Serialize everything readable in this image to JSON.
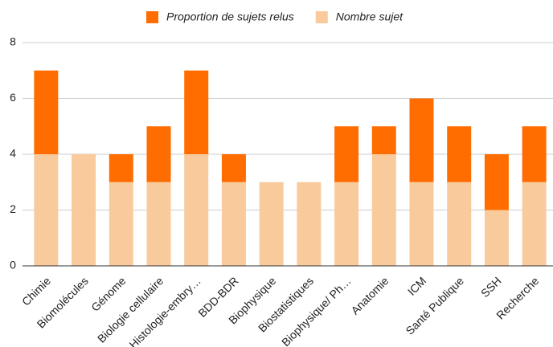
{
  "chart_data": {
    "type": "stacked_bar",
    "categories": [
      "Chimie",
      "Biomolécules",
      "Génome",
      "Biologie cellulaire",
      "Histologie-embry…",
      "BDD-BDR",
      "Biophysique",
      "Biostatistiques",
      "Biophysique/ Ph…",
      "Anatomie",
      "ICM",
      "Santé Publique",
      "SSH",
      "Recherche"
    ],
    "series": [
      {
        "name": "Nombre sujet",
        "color": "#f9cb9c",
        "values": [
          4,
          4,
          3,
          3,
          4,
          3,
          3,
          3,
          3,
          4,
          3,
          3,
          2,
          3
        ]
      },
      {
        "name": "Proportion de sujets relus",
        "color": "#ff6d01",
        "values": [
          3,
          0,
          1,
          2,
          3,
          1,
          0,
          0,
          2,
          1,
          3,
          2,
          2,
          2
        ]
      }
    ],
    "legend_order": [
      "Proportion de sujets relus",
      "Nombre sujet"
    ],
    "ylim": [
      0,
      8
    ],
    "yticks": [
      0,
      2,
      4,
      6,
      8
    ],
    "grid": true,
    "legend": "top"
  }
}
